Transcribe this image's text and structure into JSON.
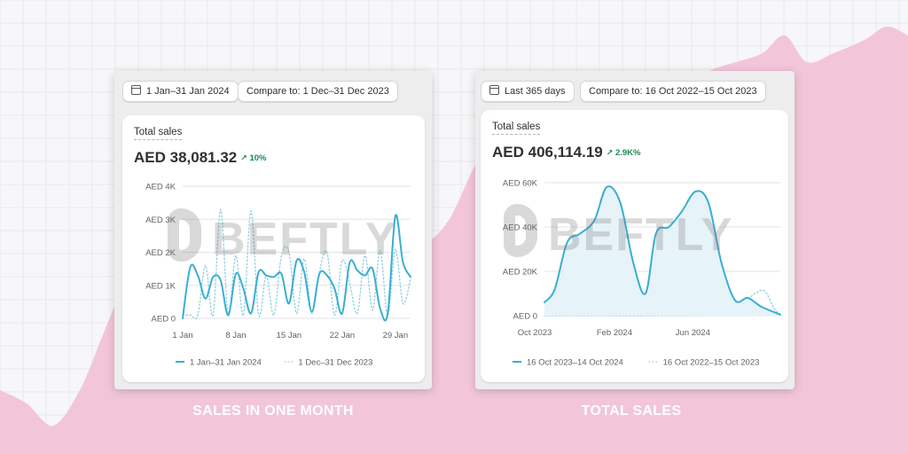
{
  "watermark": "BEFTLY",
  "colors": {
    "line": "#3aaed2",
    "compare": "#8ecfe4",
    "area": "#f2c6d8",
    "grid": "#e3e3e7",
    "positive": "#1a8a52"
  },
  "panels": [
    {
      "date_range": "1 Jan–31 Jan 2024",
      "compare": "Compare to: 1 Dec–31 Dec 2023",
      "title": "Total sales",
      "value": "AED 38,081.32",
      "delta": "10%",
      "caption": "SALES IN ONE MONTH"
    },
    {
      "date_range": "Last 365 days",
      "compare": "Compare to: 16 Oct 2022–15 Oct 2023",
      "title": "Total sales",
      "value": "AED 406,114.19",
      "delta": "2.9K%",
      "caption": "TOTAL SALES"
    }
  ],
  "chart_data": [
    {
      "type": "line",
      "ylabels": [
        "AED 0",
        "AED 1K",
        "AED 2K",
        "AED 3K",
        "AED 4K"
      ],
      "ylim": [
        0,
        4000
      ],
      "xlim": [
        1,
        31
      ],
      "xticks": [
        1,
        8,
        15,
        22,
        29
      ],
      "xlabels": [
        "1 Jan",
        "8 Jan",
        "15 Jan",
        "22 Jan",
        "29 Jan"
      ],
      "grid": true,
      "legend_position": "bottom",
      "series": [
        {
          "name": "1 Jan–31 Jan 2024",
          "style": "solid",
          "x": [
            1,
            2,
            3,
            4,
            5,
            6,
            7,
            8,
            9,
            10,
            11,
            12,
            13,
            14,
            15,
            16,
            17,
            18,
            19,
            20,
            21,
            22,
            23,
            24,
            25,
            26,
            27,
            28,
            29,
            30,
            31
          ],
          "values": [
            0,
            1550,
            1300,
            600,
            1250,
            1150,
            100,
            1350,
            900,
            150,
            1400,
            1300,
            1250,
            1350,
            450,
            1750,
            1400,
            200,
            1350,
            1300,
            900,
            150,
            1700,
            1450,
            1300,
            1500,
            300,
            150,
            3100,
            1700,
            1250
          ]
        },
        {
          "name": "1 Dec–31 Dec 2023",
          "style": "dotted",
          "x": [
            1,
            2,
            3,
            4,
            5,
            6,
            7,
            8,
            9,
            10,
            11,
            12,
            13,
            14,
            15,
            16,
            17,
            18,
            19,
            20,
            21,
            22,
            23,
            24,
            25,
            26,
            27,
            28,
            29,
            30,
            31
          ],
          "values": [
            100,
            100,
            100,
            1600,
            100,
            3300,
            100,
            1900,
            100,
            3250,
            100,
            1300,
            100,
            1900,
            2000,
            150,
            1800,
            150,
            1400,
            2000,
            100,
            1750,
            1050,
            150,
            1900,
            250,
            2050,
            100,
            2100,
            450,
            1200
          ]
        }
      ]
    },
    {
      "type": "line",
      "ylabels": [
        "AED 0",
        "AED 20K",
        "AED 40K",
        "AED 60K"
      ],
      "ylim": [
        0,
        60000
      ],
      "xlim": [
        "2023-10-16",
        "2024-10-14"
      ],
      "xticks": [
        "2023-10-01",
        "2024-02-01",
        "2024-06-01"
      ],
      "xlabels": [
        "Oct 2023",
        "Feb 2024",
        "Jun 2024"
      ],
      "grid": true,
      "legend_position": "bottom",
      "series": [
        {
          "name": "16 Oct 2023–14 Oct 2024",
          "style": "solid-area",
          "x": [
            "2023-10-16",
            "2023-11-01",
            "2023-11-20",
            "2023-12-10",
            "2024-01-01",
            "2024-01-20",
            "2024-02-10",
            "2024-03-01",
            "2024-03-20",
            "2024-04-05",
            "2024-04-25",
            "2024-05-15",
            "2024-06-05",
            "2024-06-25",
            "2024-07-15",
            "2024-08-05",
            "2024-08-25",
            "2024-09-15",
            "2024-10-14"
          ],
          "values": [
            6000,
            12000,
            33000,
            37000,
            43000,
            58000,
            51000,
            24000,
            10000,
            37000,
            40000,
            47000,
            56000,
            51000,
            24000,
            7000,
            8000,
            4000,
            500
          ]
        },
        {
          "name": "16 Oct 2022–15 Oct 2023",
          "style": "dotted",
          "x": [
            "2023-10-16",
            "2024-01-01",
            "2024-04-01",
            "2024-07-01",
            "2024-08-01",
            "2024-08-20",
            "2024-09-05",
            "2024-09-20",
            "2024-10-05",
            "2024-10-14"
          ],
          "values": [
            0,
            0,
            0,
            300,
            1500,
            6000,
            10000,
            11000,
            3000,
            500
          ]
        }
      ]
    }
  ]
}
